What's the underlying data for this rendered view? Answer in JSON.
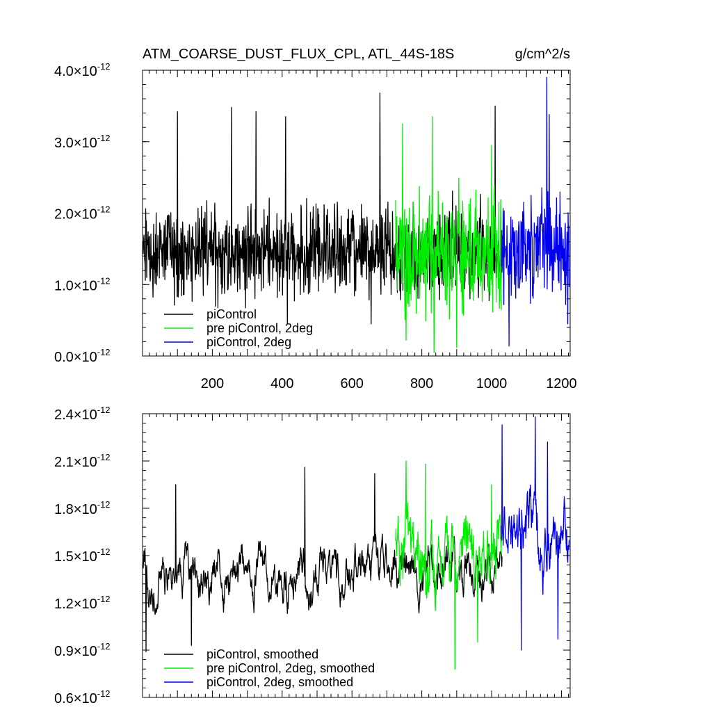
{
  "chart_data": [
    {
      "type": "line",
      "title": "ATM_COARSE_DUST_FLUX_CPL, ATL_44S-18S",
      "units": "g/cm^2/s",
      "xlim": [
        0,
        1225
      ],
      "ylim": [
        0.0,
        4.0
      ],
      "y_scale_exponent": -12,
      "xticks": [
        200,
        400,
        600,
        800,
        1000,
        1200
      ],
      "xtick_labels": [
        "200",
        "400",
        "600",
        "800",
        "1000",
        "1200"
      ],
      "yticks": [
        0.0,
        1.0,
        2.0,
        3.0,
        4.0
      ],
      "ytick_labels": [
        "0.0",
        "1.0",
        "2.0",
        "3.0",
        "4.0"
      ],
      "ytick_suffix": "×10",
      "ytick_exponent": "-12",
      "legend_position": "bottom-left",
      "series": [
        {
          "name": "piControl",
          "color": "#000000",
          "x_range": [
            1,
            1030
          ],
          "mean": 1.45,
          "amplitude": 0.55,
          "peaks": [
            [
              100,
              3.42
            ],
            [
              255,
              3.48
            ],
            [
              325,
              3.42
            ],
            [
              410,
              3.35
            ],
            [
              680,
              3.68
            ],
            [
              1010,
              3.5
            ]
          ],
          "troughs": [
            [
              415,
              0.45
            ],
            [
              655,
              0.45
            ]
          ]
        },
        {
          "name": "pre piControl, 2deg",
          "color": "#00ee00",
          "x_range": [
            725,
            1028
          ],
          "mean": 1.45,
          "amplitude": 0.7,
          "peaks": [
            [
              745,
              3.25
            ],
            [
              830,
              3.35
            ],
            [
              1000,
              2.95
            ]
          ],
          "troughs": [
            [
              755,
              0.22
            ],
            [
              835,
              0.05
            ],
            [
              900,
              0.12
            ]
          ]
        },
        {
          "name": "piControl, 2deg",
          "color": "#0000ee",
          "x_range": [
            1028,
            1222
          ],
          "mean": 1.5,
          "amplitude": 0.65,
          "peaks": [
            [
              1158,
              3.9
            ],
            [
              1165,
              3.38
            ]
          ],
          "troughs": [
            [
              1050,
              0.14
            ],
            [
              1218,
              0.45
            ]
          ]
        }
      ]
    },
    {
      "type": "line",
      "xlim": [
        0,
        1225
      ],
      "ylim": [
        0.6,
        2.4
      ],
      "y_scale_exponent": -12,
      "yticks": [
        0.6,
        0.9,
        1.2,
        1.5,
        1.8,
        2.1,
        2.4
      ],
      "ytick_labels": [
        "0.6",
        "0.9",
        "1.2",
        "1.5",
        "1.8",
        "2.1",
        "2.4"
      ],
      "ytick_suffix": "×10",
      "ytick_exponent": "-12",
      "legend_position": "bottom-left",
      "series": [
        {
          "name": "piControl, smoothed",
          "color": "#000000",
          "x_range": [
            1,
            1030
          ],
          "mean": 1.38,
          "amplitude": 0.18,
          "peaks": [
            [
              95,
              1.95
            ],
            [
              465,
              2.06
            ],
            [
              665,
              2.02
            ]
          ],
          "troughs": [
            [
              10,
              0.89
            ],
            [
              140,
              0.93
            ]
          ]
        },
        {
          "name": "pre piControl, 2deg, smoothed",
          "color": "#00ee00",
          "x_range": [
            725,
            1028
          ],
          "mean": 1.5,
          "amplitude": 0.3,
          "peaks": [
            [
              755,
              2.1
            ],
            [
              810,
              2.08
            ],
            [
              1000,
              1.95
            ]
          ],
          "troughs": [
            [
              895,
              0.78
            ],
            [
              960,
              0.95
            ]
          ]
        },
        {
          "name": "piControl, 2deg, smoothed",
          "color": "#0000ee",
          "x_range": [
            1028,
            1222
          ],
          "mean": 1.6,
          "amplitude": 0.28,
          "peaks": [
            [
              1030,
              2.33
            ],
            [
              1125,
              2.38
            ],
            [
              1160,
              2.22
            ]
          ],
          "troughs": [
            [
              1085,
              0.9
            ],
            [
              1190,
              0.97
            ]
          ]
        }
      ]
    }
  ]
}
